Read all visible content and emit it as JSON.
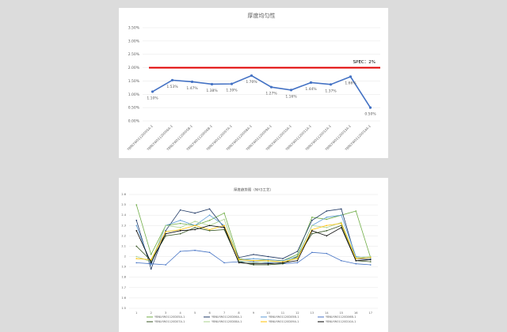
{
  "chart_data": [
    {
      "type": "line",
      "title": "厚度均匀性",
      "categories": [
        "YBNLYW01120D05A-1",
        "YBNLYW01120D06A-1",
        "YBNLYW01120D05B-1",
        "YBNLYW01120D06B-1",
        "YBNLYW01120D07A-1",
        "YBNLYW01120D08A-1",
        "YBNLYW01120D09A-1",
        "YBNLYW01120D10A-1",
        "YBNLYW01120D11A-1",
        "YBNLYW01120D12A-1",
        "YBNLYW01120D13A-1",
        "YBNLYW01120D14A-1"
      ],
      "series": [
        {
          "name": null,
          "color": "#4472c4",
          "values": [
            1.1,
            1.53,
            1.47,
            1.38,
            1.39,
            1.7,
            1.27,
            1.16,
            1.44,
            1.37,
            1.66,
            0.5
          ],
          "value_labels": [
            "1.10%",
            "1.53%",
            "1.47%",
            "1.38%",
            "1.39%",
            "1.70%",
            "1.27%",
            "1.16%",
            "1.44%",
            "1.37%",
            "1.66%",
            "0.50%"
          ]
        }
      ],
      "ylim": [
        0,
        3.5
      ],
      "yticks": [
        {
          "value": 0,
          "label": "0.00%"
        },
        {
          "value": 0.5,
          "label": "0.50%"
        },
        {
          "value": 1,
          "label": "1.00%"
        },
        {
          "value": 1.5,
          "label": "1.50%"
        },
        {
          "value": 2,
          "label": "2.00%"
        },
        {
          "value": 2.5,
          "label": "2.50%"
        },
        {
          "value": 3,
          "label": "3.00%"
        },
        {
          "value": 3.5,
          "label": "3.50%"
        }
      ],
      "grid": true,
      "spec": {
        "value": 2,
        "label": "SPEC：2%",
        "color": "#e00000"
      }
    },
    {
      "type": "line",
      "title": "厚度趋势图（NH3工艺）",
      "categories": [
        "1",
        "2",
        "3",
        "4",
        "5",
        "6",
        "7",
        "8",
        "9",
        "10",
        "11",
        "12",
        "13",
        "14",
        "15",
        "16",
        "17"
      ],
      "series": [
        {
          "name": "YBNLYW01120D05A-1",
          "color": "#70ad47",
          "values": [
            2.5,
            2.02,
            2.3,
            2.32,
            2.3,
            2.35,
            2.42,
            1.98,
            1.96,
            1.97,
            1.96,
            2.02,
            2.38,
            2.36,
            2.4,
            2.44,
            1.99
          ]
        },
        {
          "name": "YBNLYW01120D06A-1",
          "color": "#1f3864",
          "values": [
            2.35,
            1.88,
            2.25,
            2.45,
            2.42,
            2.46,
            2.28,
            1.99,
            2.02,
            2.0,
            1.98,
            2.05,
            2.35,
            2.44,
            2.46,
            1.98,
            1.97
          ]
        },
        {
          "name": "YBNLYW01120D05B-1",
          "color": "#5b9bd5",
          "values": [
            2.3,
            1.92,
            2.3,
            2.35,
            2.3,
            2.4,
            2.3,
            1.97,
            1.98,
            1.97,
            1.96,
            2.0,
            2.3,
            2.38,
            2.4,
            2.0,
            1.98
          ]
        },
        {
          "name": "YBNLYW01120D06B-1",
          "color": "#4472c4",
          "values": [
            1.94,
            1.93,
            1.92,
            2.05,
            2.06,
            2.04,
            1.94,
            1.95,
            1.95,
            1.94,
            1.93,
            1.94,
            2.04,
            2.03,
            1.96,
            1.93,
            1.92
          ]
        },
        {
          "name": "YBNLYW01120D07A-1",
          "color": "#375623",
          "values": [
            2.1,
            1.96,
            2.2,
            2.22,
            2.28,
            2.25,
            2.26,
            1.95,
            1.92,
            1.92,
            1.93,
            2.0,
            2.22,
            2.25,
            2.3,
            1.96,
            1.95
          ]
        },
        {
          "name": "YBNLYW01120D08A-1",
          "color": "#a9d18e",
          "values": [
            2.0,
            1.95,
            2.3,
            2.28,
            2.34,
            2.3,
            2.36,
            1.96,
            1.94,
            1.95,
            1.95,
            1.99,
            2.3,
            2.28,
            2.33,
            1.99,
            2.0
          ]
        },
        {
          "name": "YBNLYW01120D09A-1",
          "color": "#ffc000",
          "values": [
            1.98,
            1.97,
            2.24,
            2.26,
            2.3,
            2.26,
            2.3,
            1.97,
            1.96,
            1.96,
            1.95,
            1.98,
            2.26,
            2.3,
            2.32,
            1.98,
            1.99
          ]
        },
        {
          "name": "YBNLYW01120D10A-1",
          "color": "#000000",
          "values": [
            2.25,
            1.94,
            2.22,
            2.25,
            2.26,
            2.3,
            2.28,
            1.94,
            1.93,
            1.93,
            1.94,
            1.96,
            2.25,
            2.2,
            2.28,
            1.96,
            1.97
          ]
        }
      ],
      "ylim": [
        1.5,
        2.6
      ],
      "yticks": [
        1.5,
        1.6,
        1.7,
        1.8,
        1.9,
        2,
        2.1,
        2.2,
        2.3,
        2.4,
        2.5,
        2.6
      ],
      "grid": true
    }
  ]
}
